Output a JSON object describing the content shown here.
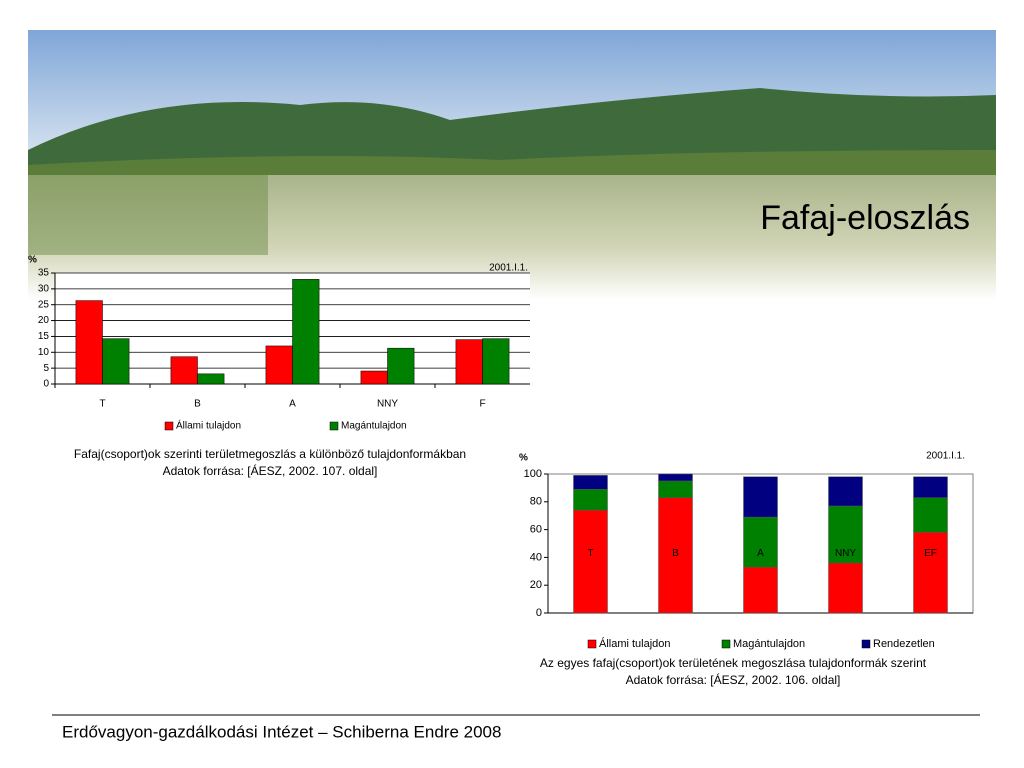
{
  "title": "Fafaj-eloszlás",
  "footer": "Erdővagyon-gazdálkodási Intézet – Schiberna Endre 2008",
  "chart_data": [
    {
      "type": "bar",
      "y_label": "%",
      "date": "2001.I.1.",
      "categories": [
        "T",
        "B",
        "A",
        "NNY",
        "F"
      ],
      "series": [
        {
          "name": "Állami tulajdon",
          "color": "#ff0000",
          "values": [
            26.3,
            8.6,
            12,
            4.1,
            14
          ]
        },
        {
          "name": "Magántulajdon",
          "color": "#008000",
          "values": [
            14.3,
            3.2,
            33,
            11.3,
            14.3
          ]
        }
      ],
      "ylim": [
        0,
        35
      ],
      "yticks": [
        0,
        5,
        10,
        15,
        20,
        25,
        30,
        35
      ],
      "grid": true,
      "caption": [
        "Fafaj(csoport)ok szerinti területmegoszlás a különböző tulajdonformákban",
        "Adatok forrása: [ÁESZ, 2002. 107. oldal]"
      ]
    },
    {
      "type": "stacked_bar",
      "y_label": "%",
      "date": "2001.I.1.",
      "categories": [
        "T",
        "B",
        "A",
        "NNY",
        "EF"
      ],
      "series": [
        {
          "name": "Állami tulajdon",
          "color": "#ff0000",
          "values": [
            74,
            83,
            33,
            36,
            58
          ]
        },
        {
          "name": "Magántulajdon",
          "color": "#008000",
          "values": [
            15,
            12,
            36,
            41,
            25
          ]
        },
        {
          "name": "Rendezetlen",
          "color": "#000080",
          "values": [
            10,
            5,
            29,
            21,
            15
          ]
        }
      ],
      "ylim": [
        0,
        100
      ],
      "yticks": [
        0,
        20,
        40,
        60,
        80,
        100
      ],
      "grid": false,
      "caption": [
        "Az egyes fafaj(csoport)ok területének megoszlása tulajdonformák szerint",
        "Adatok forrása: [ÁESZ, 2002. 106. oldal]"
      ]
    }
  ]
}
